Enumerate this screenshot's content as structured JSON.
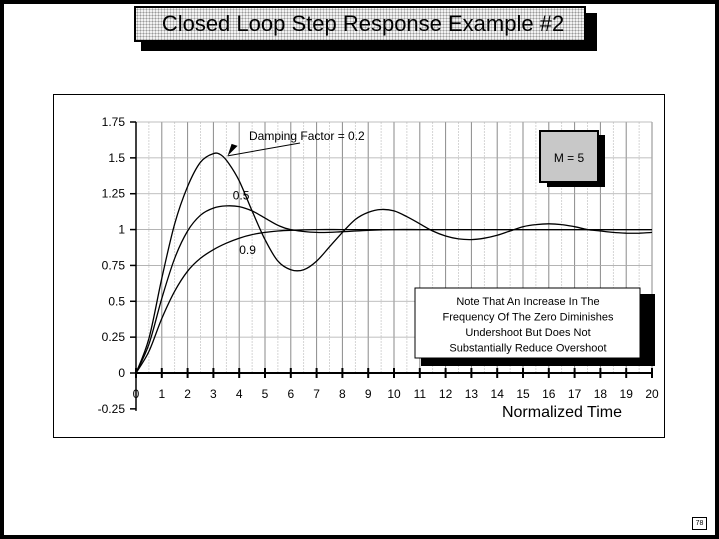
{
  "slide": {
    "title": "Closed  Loop  Step  Response  Example  #2",
    "page_number": "78"
  },
  "chart_data": {
    "type": "line",
    "title": "",
    "xlabel": "Normalized  Time",
    "ylabel": "",
    "xlim": [
      0,
      20
    ],
    "ylim": [
      -0.25,
      1.75
    ],
    "x_ticks": [
      0,
      1,
      2,
      3,
      4,
      5,
      6,
      7,
      8,
      9,
      10,
      11,
      12,
      13,
      14,
      15,
      16,
      17,
      18,
      19,
      20
    ],
    "x_tick_labels": [
      "0",
      "1",
      "2",
      "3",
      "4",
      "5",
      "6",
      "7",
      "8",
      "9",
      "10",
      "11",
      "12",
      "13",
      "14",
      "15",
      "16",
      "17",
      "18",
      "19",
      "20"
    ],
    "y_ticks": [
      1.75,
      1.5,
      1.25,
      1,
      0.75,
      0.5,
      0.25,
      0,
      -0.25
    ],
    "y_tick_labels": [
      "1.75",
      "1.5",
      "1.25",
      "1",
      "0.75",
      "0.5",
      "0.25",
      "0",
      "-0.25"
    ],
    "grid": true,
    "series": [
      {
        "name": "Damping Factor = 0.2",
        "color": "#000000",
        "x": [
          0,
          0.5,
          1,
          1.5,
          2,
          2.5,
          3,
          3.3,
          3.6,
          4,
          4.5,
          5,
          5.5,
          6,
          6.5,
          7,
          7.5,
          8,
          8.5,
          9,
          9.5,
          10,
          10.5,
          11,
          11.5,
          12,
          12.5,
          13,
          13.5,
          14,
          14.5,
          15,
          15.5,
          16,
          16.5,
          17,
          17.5,
          18,
          18.5,
          19,
          19.5,
          20
        ],
        "y": [
          0,
          0.24,
          0.66,
          1.04,
          1.3,
          1.47,
          1.53,
          1.52,
          1.46,
          1.34,
          1.13,
          0.93,
          0.78,
          0.72,
          0.72,
          0.78,
          0.88,
          0.98,
          1.07,
          1.12,
          1.14,
          1.13,
          1.09,
          1.04,
          0.99,
          0.955,
          0.935,
          0.93,
          0.94,
          0.96,
          0.99,
          1.02,
          1.035,
          1.04,
          1.035,
          1.02,
          1.0,
          0.99,
          0.98,
          0.975,
          0.975,
          0.98
        ]
      },
      {
        "name": "0.5",
        "color": "#000000",
        "x": [
          0,
          0.5,
          1,
          1.5,
          2,
          2.5,
          3,
          3.5,
          4,
          4.5,
          5,
          5.5,
          6,
          7,
          8,
          9,
          10,
          11,
          12,
          13,
          14,
          15,
          16,
          17,
          18,
          19,
          20
        ],
        "y": [
          0,
          0.2,
          0.52,
          0.8,
          0.99,
          1.1,
          1.15,
          1.165,
          1.16,
          1.13,
          1.08,
          1.03,
          1.0,
          0.98,
          0.985,
          0.995,
          1.0,
          1.0,
          1.0,
          1.0,
          1.0,
          1.0,
          1.0,
          1.0,
          1.0,
          1.0,
          1.0
        ]
      },
      {
        "name": "0.9",
        "color": "#000000",
        "x": [
          0,
          0.5,
          1,
          1.5,
          2,
          2.5,
          3,
          3.5,
          4,
          4.5,
          5,
          5.5,
          6,
          7,
          8,
          9,
          10,
          11,
          12,
          13,
          14,
          15,
          16,
          17,
          18,
          19,
          20
        ],
        "y": [
          0,
          0.15,
          0.38,
          0.57,
          0.71,
          0.8,
          0.86,
          0.905,
          0.94,
          0.965,
          0.98,
          0.99,
          0.995,
          1.0,
          1.0,
          1.0,
          1.0,
          1.0,
          1.0,
          1.0,
          1.0,
          1.0,
          1.0,
          1.0,
          1.0,
          1.0,
          1.0
        ]
      }
    ],
    "annotations": {
      "damping_label": "Damping Factor = 0.2",
      "label_05": "0.5",
      "label_09": "0.9",
      "m_box": "M  =  5",
      "note_lines": [
        "Note That An Increase In The",
        "Frequency Of The Zero Diminishes",
        "Undershoot But Does Not",
        "Substantially Reduce Overshoot"
      ]
    }
  }
}
